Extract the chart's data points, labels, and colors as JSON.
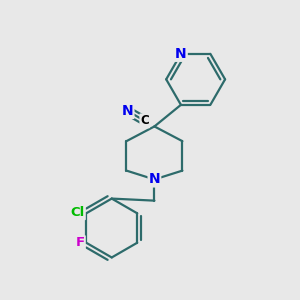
{
  "bg_color": "#e8e8e8",
  "bond_color": "#2d6b6b",
  "bond_width": 1.6,
  "N_color": "#0000ee",
  "Cl_color": "#00bb00",
  "F_color": "#cc00cc",
  "C_color": "#000000",
  "fig_width": 3.0,
  "fig_height": 3.0,
  "dpi": 100,
  "xlim": [
    0,
    10
  ],
  "ylim": [
    0,
    10
  ]
}
